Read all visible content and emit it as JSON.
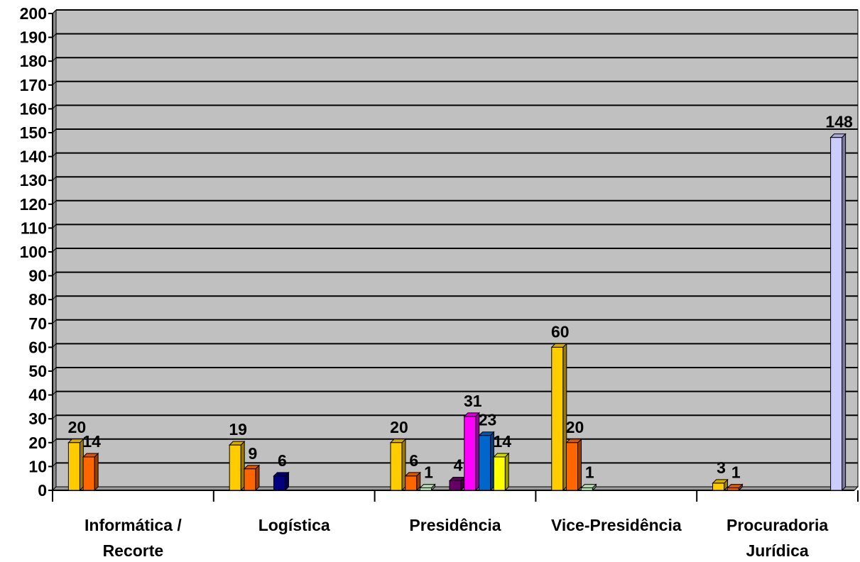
{
  "chart_data": {
    "type": "bar",
    "title": "",
    "xlabel": "",
    "ylabel": "",
    "ylim": [
      0,
      200
    ],
    "yticks": [
      0,
      10,
      20,
      30,
      40,
      50,
      60,
      70,
      80,
      90,
      100,
      110,
      120,
      130,
      140,
      150,
      160,
      170,
      180,
      190,
      200
    ],
    "grid": true,
    "legend": "none",
    "background_color": "#c0c0c0",
    "categories": [
      {
        "id": "informatica",
        "lines": [
          "Informática /",
          "Recorte"
        ]
      },
      {
        "id": "logistica",
        "lines": [
          "Logística"
        ]
      },
      {
        "id": "presidencia",
        "lines": [
          "Presidência"
        ]
      },
      {
        "id": "vice-presidencia",
        "lines": [
          "Vice-Presidência"
        ]
      },
      {
        "id": "procuradoria",
        "lines": [
          "Procuradoria",
          "Jurídica"
        ]
      }
    ],
    "series": [
      {
        "color": "#ffcc00",
        "values": [
          20,
          19,
          20,
          60,
          3
        ]
      },
      {
        "color": "#ff6600",
        "values": [
          14,
          9,
          6,
          20,
          1
        ]
      },
      {
        "color": "#ccffcc",
        "values": [
          null,
          null,
          1,
          1,
          null
        ]
      },
      {
        "color": "#000080",
        "values": [
          null,
          6,
          null,
          null,
          null
        ]
      },
      {
        "color": "#660066",
        "values": [
          null,
          null,
          4,
          null,
          null
        ]
      },
      {
        "color": "#ff00ff",
        "values": [
          null,
          null,
          31,
          null,
          null
        ]
      },
      {
        "color": "#0066cc",
        "values": [
          null,
          null,
          23,
          null,
          null
        ]
      },
      {
        "color": "#ffff00",
        "values": [
          null,
          null,
          14,
          null,
          null
        ]
      },
      {
        "color": "#ccccff",
        "values": [
          null,
          null,
          null,
          null,
          148
        ]
      }
    ]
  }
}
